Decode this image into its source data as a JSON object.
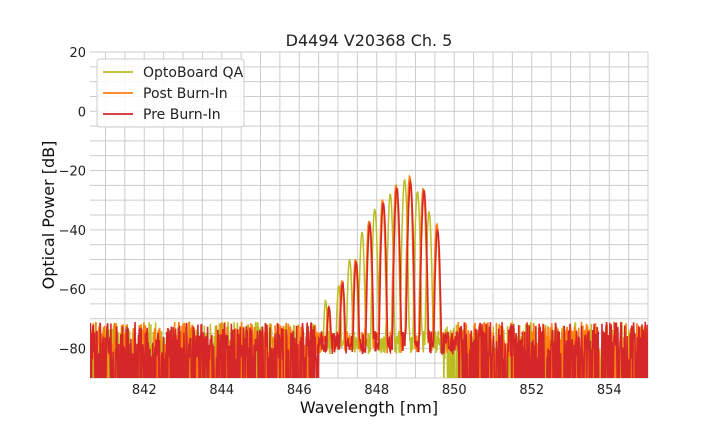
{
  "chart_data": {
    "type": "line",
    "title": "D4494 V20368 Ch. 5",
    "xlabel": "Wavelength [nm]",
    "ylabel": "Optical Power [dB]",
    "xlim": [
      840.6,
      855.0
    ],
    "ylim": [
      -90,
      20
    ],
    "x_ticks": [
      842,
      844,
      846,
      848,
      850,
      852,
      854
    ],
    "y_ticks": [
      20,
      0,
      -20,
      -40,
      -60,
      -80
    ],
    "y_tick_labels": [
      "20",
      "0",
      "−20",
      "−40",
      "−60",
      "−80"
    ],
    "x_minor_step": 0.5,
    "y_minor_step": 5,
    "grid": true,
    "legend_position": "top-left",
    "noise_floor": {
      "level_min": -84,
      "level_max": -71,
      "clip": -90
    },
    "series": [
      {
        "name": "OptoBoard QA",
        "color": "#bcbd22",
        "noise_edges": [
          846.3,
          849.7
        ],
        "envelope": [
          [
            845.6,
            -74
          ],
          [
            846.2,
            -70
          ],
          [
            846.6,
            -64
          ],
          [
            847.0,
            -55
          ],
          [
            847.4,
            -44
          ],
          [
            847.9,
            -33
          ],
          [
            848.3,
            -28
          ],
          [
            848.7,
            -26
          ],
          [
            849.0,
            -29
          ],
          [
            849.3,
            -37
          ],
          [
            849.6,
            -70
          ]
        ],
        "peaks": [
          846.35,
          846.68,
          847.02,
          847.3,
          847.62,
          847.95,
          848.35,
          848.72,
          849.05,
          849.35
        ],
        "peak_values": [
          -72,
          -64,
          -59,
          -50,
          -41,
          -33,
          -28,
          -23,
          -27,
          -34
        ]
      },
      {
        "name": "Post Burn-In",
        "color": "#ff7f0e",
        "noise_edges": [
          846.4,
          850.1
        ],
        "envelope": [
          [
            846.0,
            -73
          ],
          [
            846.6,
            -68
          ],
          [
            847.1,
            -56
          ],
          [
            847.5,
            -42
          ],
          [
            848.0,
            -30
          ],
          [
            848.5,
            -25
          ],
          [
            848.9,
            -22
          ],
          [
            849.3,
            -26
          ],
          [
            849.6,
            -38
          ],
          [
            850.0,
            -70
          ]
        ],
        "peaks": [
          846.4,
          846.75,
          847.1,
          847.45,
          847.8,
          848.15,
          848.5,
          848.85,
          849.2,
          849.55
        ],
        "peak_values": [
          -72,
          -66,
          -57,
          -50,
          -37,
          -30,
          -25,
          -22,
          -26,
          -38
        ]
      },
      {
        "name": "Pre Burn-In",
        "color": "#d62728",
        "noise_edges": [
          846.5,
          850.1
        ],
        "envelope": [
          [
            846.0,
            -73
          ],
          [
            846.6,
            -68
          ],
          [
            847.1,
            -57
          ],
          [
            847.5,
            -43
          ],
          [
            848.0,
            -31
          ],
          [
            848.5,
            -26
          ],
          [
            848.9,
            -23
          ],
          [
            849.3,
            -27
          ],
          [
            849.6,
            -39
          ],
          [
            850.0,
            -70
          ]
        ],
        "peaks": [
          846.42,
          846.77,
          847.12,
          847.47,
          847.82,
          848.17,
          848.52,
          848.87,
          849.22,
          849.57
        ],
        "peak_values": [
          -73,
          -66,
          -58,
          -51,
          -38,
          -31,
          -26,
          -24,
          -27,
          -40
        ]
      }
    ]
  }
}
